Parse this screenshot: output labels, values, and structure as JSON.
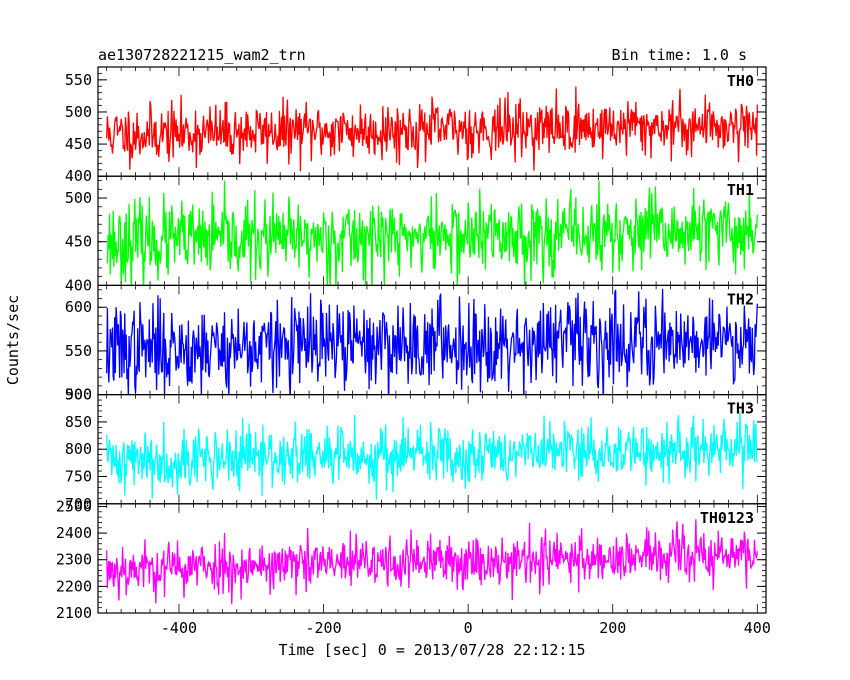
{
  "chart_data": {
    "type": "line",
    "title_left": "ae130728221215_wam2_trn",
    "title_right": "Bin time: 1.0 s",
    "xlabel": "Time [sec] 0 = 2013/07/28 22:12:15",
    "ylabel": "Counts/sec",
    "xlim": [
      -512,
      412
    ],
    "x_ticks": [
      -400,
      -200,
      0,
      200,
      400
    ],
    "x_start": -500,
    "x_end": 400,
    "grid": false,
    "series": [
      {
        "name": "TH0",
        "color": "#ff0000",
        "ylim": [
          400,
          570
        ],
        "y_ticks": [
          400,
          450,
          500,
          550
        ],
        "mean": 470,
        "std": 22,
        "trend": [
          465,
          480
        ],
        "seed": 11
      },
      {
        "name": "TH1",
        "color": "#00ff00",
        "ylim": [
          400,
          525
        ],
        "y_ticks": [
          400,
          450,
          500
        ],
        "mean": 455,
        "std": 22,
        "trend": [
          450,
          462
        ],
        "seed": 23
      },
      {
        "name": "TH2",
        "color": "#0000ff",
        "ylim": [
          500,
          625
        ],
        "y_ticks": [
          500,
          550,
          600
        ],
        "mean": 555,
        "std": 25,
        "trend": [
          552,
          565
        ],
        "seed": 37
      },
      {
        "name": "TH3",
        "color": "#00ffff",
        "ylim": [
          700,
          900
        ],
        "y_ticks": [
          700,
          750,
          800,
          850,
          900
        ],
        "mean": 785,
        "std": 28,
        "trend": [
          780,
          800
        ],
        "seed": 41
      },
      {
        "name": "TH0123",
        "color": "#ff00ff",
        "ylim": [
          2100,
          2510
        ],
        "y_ticks": [
          2100,
          2200,
          2300,
          2400,
          2500
        ],
        "mean": 2275,
        "std": 50,
        "trend": [
          2265,
          2320
        ],
        "seed": 53
      }
    ]
  }
}
